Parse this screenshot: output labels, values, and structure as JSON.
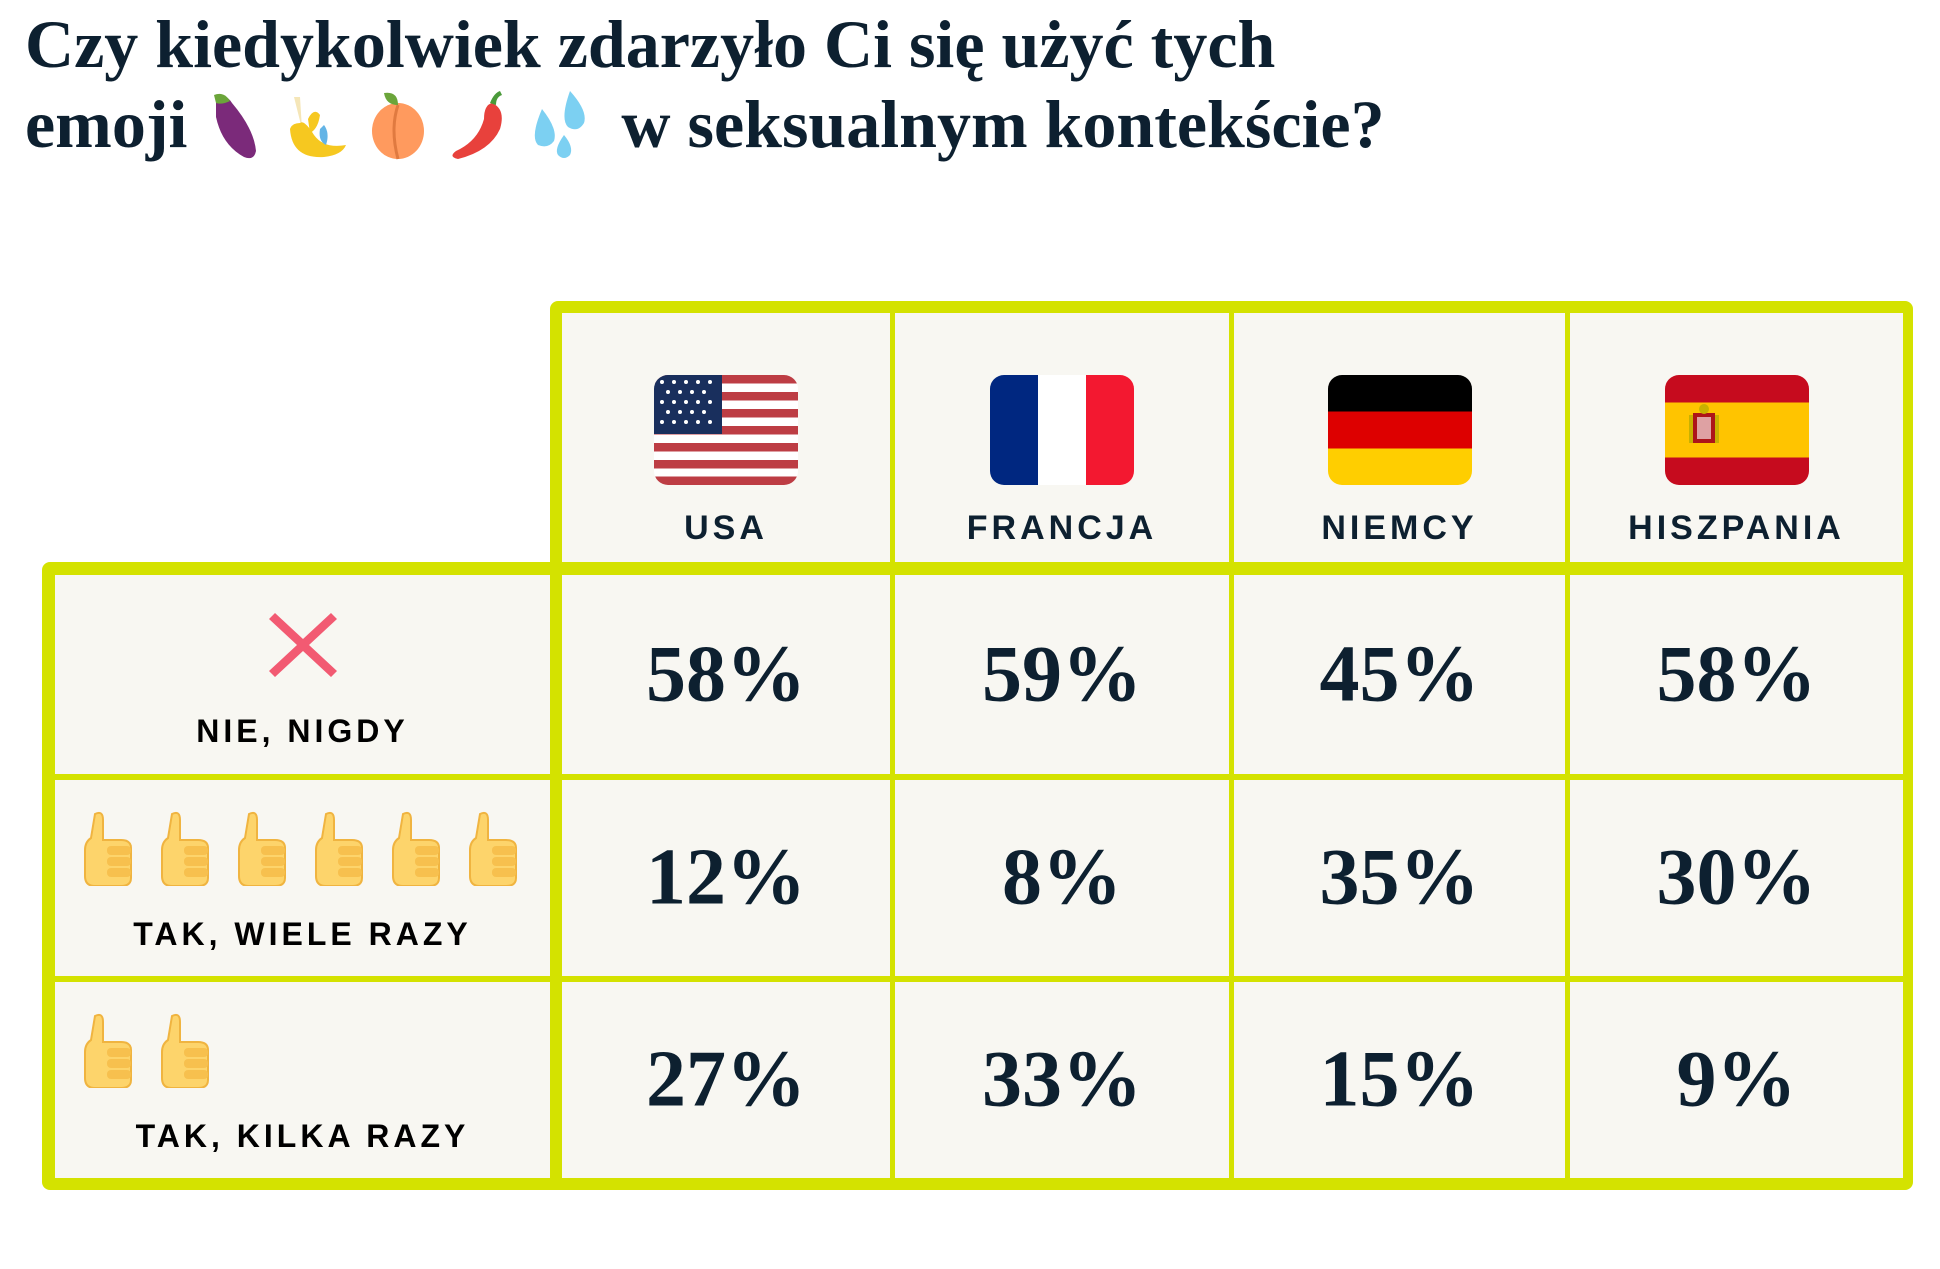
{
  "title": {
    "line1": "Czy kiedykolwiek zdarzyło Ci się użyć tych",
    "line2_start": "emoji",
    "line2_end": "w seksualnym kontekście?",
    "emojis": [
      "eggplant-emoji",
      "banana-emoji",
      "peach-emoji",
      "hot-pepper-emoji",
      "sweat-droplets-emoji"
    ]
  },
  "colors": {
    "border": "#d4e200",
    "cell": "#f8f7f2",
    "text": "#0d2030",
    "cross": "#f25a72",
    "thumb": "#fdd46b"
  },
  "chart_data": {
    "type": "table",
    "title": "Czy kiedykolwiek zdarzyło Ci się użyć tych emoji w seksualnym kontekście?",
    "columns": [
      {
        "label": "USA",
        "flag": "us-flag"
      },
      {
        "label": "FRANCJA",
        "flag": "france-flag"
      },
      {
        "label": "NIEMCY",
        "flag": "germany-flag"
      },
      {
        "label": "HISZPANIA",
        "flag": "spain-flag"
      }
    ],
    "rows": [
      {
        "label": "NIE, NIGDY",
        "icon": "cross-icon",
        "icon_count": 1,
        "values": [
          "58%",
          "59%",
          "45%",
          "58%"
        ]
      },
      {
        "label": "TAK, WIELE RAZY",
        "icon": "thumbs-up-icon",
        "icon_count": 6,
        "values": [
          "12%",
          "8%",
          "35%",
          "30%"
        ]
      },
      {
        "label": "TAK, KILKA RAZY",
        "icon": "thumbs-up-icon",
        "icon_count": 2,
        "values": [
          "27%",
          "33%",
          "15%",
          "9%"
        ]
      }
    ]
  }
}
